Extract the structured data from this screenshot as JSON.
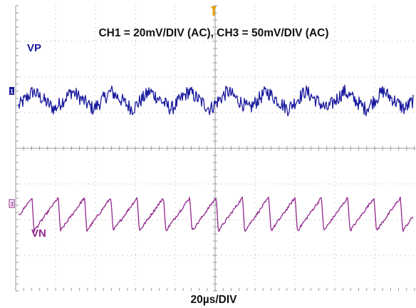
{
  "header": "CH1 = 20mV/DIV (AC), CH3 = 50mV/DIV (AC)",
  "footer": "20µs/DIV",
  "colors": {
    "ch1": "#1a1a9e",
    "ch3": "#93278f",
    "grid": "#9a9a9a",
    "trigger": "#e8a000",
    "screen": "#ffffff"
  },
  "chart_data": {
    "type": "line",
    "title": "CH1 = 20mV/DIV (AC), CH3 = 50mV/DIV (AC)",
    "xlabel": "20µs/DIV",
    "ylabel": "",
    "grid": true,
    "divisions": {
      "x": 10,
      "y": 8
    },
    "x_unit": "µs",
    "x_range": [
      0,
      200
    ],
    "series": [
      {
        "name": "VP",
        "channel_marker": "1",
        "scale_per_div": "20mV",
        "coupling": "AC",
        "waveform": "ripple with high-frequency noise",
        "offset_div": 1.35,
        "period_us": 19.5,
        "ripple_pp_mV": 10,
        "noise_pp_mV": 8,
        "y_min_mV": -9,
        "y_max_mV": 9
      },
      {
        "name": "VN",
        "channel_marker": "3",
        "scale_per_div": "50mV",
        "coupling": "AC",
        "waveform": "sawtooth (slow rise, fast fall)",
        "offset_div": -1.85,
        "period_us": 13.2,
        "amplitude_pp_mV": 47,
        "y_min_mV": -24,
        "y_max_mV": 24
      }
    ]
  }
}
